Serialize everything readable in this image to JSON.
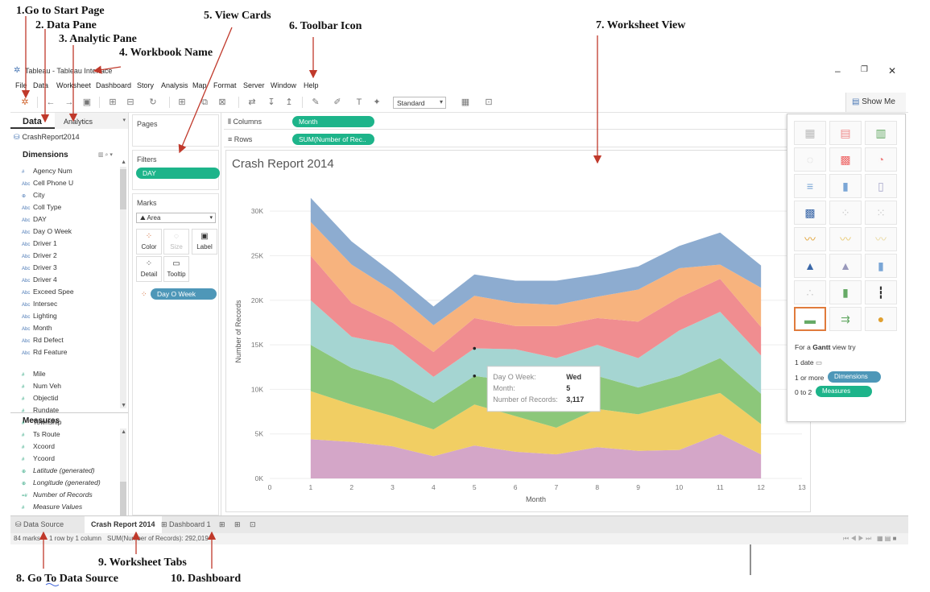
{
  "annotations": [
    {
      "id": "start",
      "text": "1.Go to Start Page"
    },
    {
      "id": "data",
      "text": "2. Data Pane"
    },
    {
      "id": "analytic",
      "text": "3. Analytic Pane"
    },
    {
      "id": "workbook",
      "text": "4. Workbook Name"
    },
    {
      "id": "viewcards",
      "text": "5. View Cards"
    },
    {
      "id": "toolbar",
      "text": "6. Toolbar Icon"
    },
    {
      "id": "worksheet",
      "text": "7. Worksheet View"
    },
    {
      "id": "datasource",
      "text": "8. Go To Data Source"
    },
    {
      "id": "tabs",
      "text": "9. Worksheet Tabs"
    },
    {
      "id": "dashboard",
      "text": "10. Dashboard"
    }
  ],
  "window": {
    "title": "Tableau - Tableau Interface",
    "minimize": "–",
    "maximize": "❐",
    "close": "✕"
  },
  "menu": [
    "File",
    "Data",
    "Worksheet",
    "Dashboard",
    "Story",
    "Analysis",
    "Map",
    "Format",
    "Server",
    "Window",
    "Help"
  ],
  "toolbar": {
    "fit_select": "Standard",
    "show_me": "Show Me"
  },
  "left_pane": {
    "tab_data": "Data",
    "tab_analytics": "Analytics",
    "datasource": "CrashReport2014",
    "dimensions_header": "Dimensions",
    "dimensions": [
      {
        "icon": "#",
        "label": "Agency Num"
      },
      {
        "icon": "Abc",
        "label": "Cell Phone U"
      },
      {
        "icon": "⊕",
        "label": "City"
      },
      {
        "icon": "Abc",
        "label": "Coll Type"
      },
      {
        "icon": "Abc",
        "label": "DAY"
      },
      {
        "icon": "Abc",
        "label": "Day O Week"
      },
      {
        "icon": "Abc",
        "label": "Driver 1"
      },
      {
        "icon": "Abc",
        "label": "Driver 2"
      },
      {
        "icon": "Abc",
        "label": "Driver 3"
      },
      {
        "icon": "Abc",
        "label": "Driver 4"
      },
      {
        "icon": "Abc",
        "label": "Exceed Spee"
      },
      {
        "icon": "Abc",
        "label": "Intersec"
      },
      {
        "icon": "Abc",
        "label": "Lighting"
      },
      {
        "icon": "Abc",
        "label": "Month"
      },
      {
        "icon": "Abc",
        "label": "Rd Defect"
      },
      {
        "icon": "Abc",
        "label": "Rd Feature"
      }
    ],
    "measures_header": "Measures",
    "measures": [
      {
        "icon": "#",
        "label": "Mile",
        "italic": false
      },
      {
        "icon": "#",
        "label": "Num Veh",
        "italic": false
      },
      {
        "icon": "#",
        "label": "Objectid",
        "italic": false
      },
      {
        "icon": "#",
        "label": "Rundate",
        "italic": false
      },
      {
        "icon": "#",
        "label": "Township",
        "italic": false
      },
      {
        "icon": "#",
        "label": "Ts Route",
        "italic": false
      },
      {
        "icon": "#",
        "label": "Xcoord",
        "italic": false
      },
      {
        "icon": "#",
        "label": "Ycoord",
        "italic": false
      },
      {
        "icon": "⊕",
        "label": "Latitude (generated)",
        "italic": true
      },
      {
        "icon": "⊕",
        "label": "Longitude (generated)",
        "italic": true
      },
      {
        "icon": "=#",
        "label": "Number of Records",
        "italic": true
      },
      {
        "icon": "#",
        "label": "Measure Values",
        "italic": true
      }
    ]
  },
  "cards": {
    "pages": "Pages",
    "filters": "Filters",
    "filter_pill": "DAY",
    "marks": "Marks",
    "mark_type": "Area",
    "color": "Color",
    "size": "Size",
    "label": "Label",
    "detail": "Detail",
    "tooltip": "Tooltip",
    "color_pill": "Day O Week"
  },
  "shelves": {
    "columns_label": "Columns",
    "columns_pill": "Month",
    "rows_label": "Rows",
    "rows_pill": "SUM(Number of Rec.."
  },
  "tooltip": {
    "rows": [
      {
        "label": "Day O Week:",
        "value": "Wed"
      },
      {
        "label": "Month:",
        "value": "5"
      },
      {
        "label": "Number of Records:",
        "value": "3,117"
      }
    ]
  },
  "show_me": {
    "hint_prefix": "For a ",
    "hint_bold": "Gantt",
    "hint_suffix": " view try",
    "req1": "1 date",
    "req2": "1 or more",
    "req2_pill": "Dimensions",
    "req3": "0 to 2",
    "req3_pill": "Measures"
  },
  "sheet_tabs": {
    "data_source": "Data Source",
    "active": "Crash Report 2014",
    "dashboard": "Dashboard 1"
  },
  "status": {
    "marks": "84 marks",
    "layout": "1 row by 1 column",
    "sum": "SUM(Number of Records): 292,019"
  },
  "colors": {
    "accent_green": "#1db48a",
    "pill_blue": "#4e97b8",
    "select_orange": "#e07b3c"
  },
  "chart_data": {
    "type": "area",
    "title": "Crash Report 2014",
    "xlabel": "Month",
    "ylabel": "Number of Records",
    "x": [
      1,
      2,
      3,
      4,
      5,
      6,
      7,
      8,
      9,
      10,
      11,
      12
    ],
    "xlim": [
      0,
      13
    ],
    "xticks": [
      "0",
      "1",
      "2",
      "3",
      "4",
      "5",
      "6",
      "7",
      "8",
      "9",
      "10",
      "11",
      "12",
      "13"
    ],
    "ylim": [
      0,
      33000
    ],
    "yticks": [
      {
        "v": 0,
        "label": "0K"
      },
      {
        "v": 5000,
        "label": "5K"
      },
      {
        "v": 10000,
        "label": "10K"
      },
      {
        "v": 15000,
        "label": "15K"
      },
      {
        "v": 20000,
        "label": "20K"
      },
      {
        "v": 25000,
        "label": "25K"
      },
      {
        "v": 30000,
        "label": "30K"
      }
    ],
    "stacked": true,
    "series": [
      {
        "color": "#d4a6c8",
        "values": [
          4400,
          4100,
          3600,
          2500,
          3700,
          3000,
          2700,
          3500,
          3100,
          3200,
          5000,
          2700
        ]
      },
      {
        "color": "#f1ce63",
        "values": [
          5400,
          4200,
          3400,
          3000,
          4600,
          4000,
          3000,
          4300,
          4100,
          5200,
          4600,
          3400
        ]
      },
      {
        "color": "#8cc77a",
        "values": [
          5200,
          4100,
          4000,
          3000,
          3200,
          3900,
          3500,
          3700,
          3000,
          3100,
          3900,
          3400
        ]
      },
      {
        "color": "#a5d5d2",
        "values": [
          5000,
          3500,
          4000,
          2900,
          3100,
          3600,
          4300,
          3500,
          3300,
          5100,
          5200,
          4300
        ]
      },
      {
        "color": "#f08d90",
        "values": [
          5000,
          3800,
          2500,
          2800,
          3400,
          2600,
          3600,
          3000,
          4100,
          3700,
          3700,
          3200
        ]
      },
      {
        "color": "#f7b37e",
        "values": [
          3800,
          4300,
          3600,
          3000,
          2500,
          2600,
          2400,
          2400,
          3600,
          3300,
          1600,
          4400
        ]
      },
      {
        "color": "#8dacd0",
        "values": [
          2700,
          2600,
          2000,
          2100,
          2400,
          2500,
          2700,
          2500,
          2600,
          2500,
          3600,
          2500
        ]
      }
    ]
  }
}
